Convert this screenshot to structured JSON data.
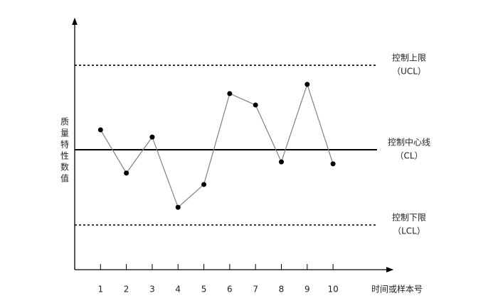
{
  "chart_data": {
    "type": "line",
    "ylabel": "质量特性数值",
    "xlabel": "时间或样本号",
    "x": [
      1,
      2,
      3,
      4,
      5,
      6,
      7,
      8,
      9,
      10
    ],
    "xticks": [
      1,
      2,
      3,
      4,
      5,
      6,
      7,
      8,
      9,
      10
    ],
    "xlim": [
      0,
      12.2
    ],
    "ylim": [
      0,
      10
    ],
    "series": [
      {
        "color": "#808080",
        "marker_color": "#000000",
        "values": [
          5.63,
          3.89,
          5.34,
          2.51,
          3.43,
          7.09,
          6.63,
          4.34,
          7.46,
          4.26
        ]
      }
    ],
    "control_lines": [
      {
        "label": "控制上限",
        "sublabel": "（UCL）",
        "value": 8.23,
        "style": "dashed"
      },
      {
        "label": "控制中心线",
        "sublabel": "（CL）",
        "value": 4.83,
        "style": "solid"
      },
      {
        "label": "控制下限",
        "sublabel": "（LCL）",
        "value": 1.8,
        "style": "dashed"
      }
    ]
  }
}
